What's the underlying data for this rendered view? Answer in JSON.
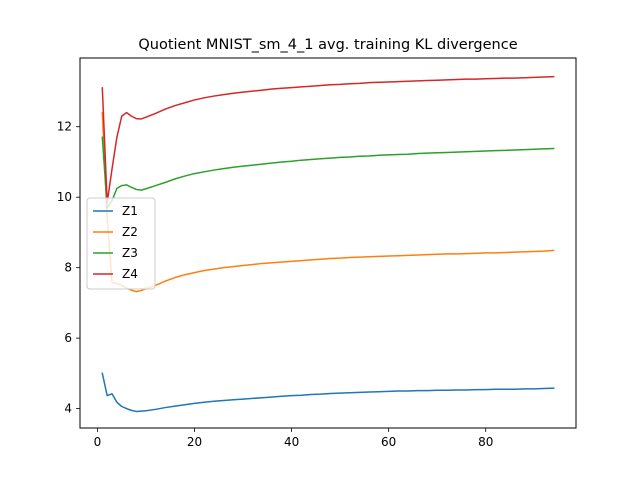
{
  "chart_data": {
    "type": "line",
    "title": "Quotient MNIST_sm_4_1 avg. training KL divergence",
    "xlabel": "",
    "ylabel": "",
    "xlim": [
      -3.6,
      98.6
    ],
    "ylim": [
      3.45,
      13.95
    ],
    "xticks": [
      0,
      20,
      40,
      60,
      80
    ],
    "yticks": [
      4,
      6,
      8,
      10,
      12
    ],
    "grid": false,
    "legend_position": "center-left",
    "series": [
      {
        "name": "Z1",
        "color": "#1f77b4",
        "x": [
          1,
          2,
          3,
          4,
          5,
          6,
          7,
          8,
          9,
          10,
          12,
          14,
          16,
          18,
          20,
          22,
          24,
          26,
          28,
          30,
          32,
          34,
          36,
          38,
          40,
          42,
          44,
          46,
          48,
          50,
          52,
          54,
          56,
          58,
          60,
          62,
          64,
          66,
          68,
          70,
          72,
          74,
          76,
          78,
          80,
          82,
          84,
          86,
          88,
          90,
          92,
          94
        ],
        "y": [
          5.0,
          4.37,
          4.42,
          4.18,
          4.06,
          4.0,
          3.95,
          3.92,
          3.93,
          3.94,
          3.98,
          4.03,
          4.07,
          4.11,
          4.15,
          4.18,
          4.21,
          4.23,
          4.25,
          4.27,
          4.29,
          4.31,
          4.33,
          4.35,
          4.37,
          4.38,
          4.4,
          4.41,
          4.43,
          4.44,
          4.45,
          4.46,
          4.47,
          4.48,
          4.49,
          4.5,
          4.5,
          4.51,
          4.51,
          4.52,
          4.52,
          4.53,
          4.53,
          4.54,
          4.54,
          4.55,
          4.55,
          4.55,
          4.56,
          4.56,
          4.57,
          4.58
        ]
      },
      {
        "name": "Z2",
        "color": "#ff7f0e",
        "x": [
          1,
          2,
          3,
          4,
          5,
          6,
          7,
          8,
          9,
          10,
          12,
          14,
          16,
          18,
          20,
          22,
          24,
          26,
          28,
          30,
          32,
          34,
          36,
          38,
          40,
          42,
          44,
          46,
          48,
          50,
          52,
          54,
          56,
          58,
          60,
          62,
          64,
          66,
          68,
          70,
          72,
          74,
          76,
          78,
          80,
          82,
          84,
          86,
          88,
          90,
          92,
          94
        ],
        "y": [
          12.4,
          9.4,
          7.58,
          7.55,
          7.5,
          7.42,
          7.36,
          7.32,
          7.35,
          7.4,
          7.5,
          7.62,
          7.72,
          7.8,
          7.86,
          7.92,
          7.96,
          8.0,
          8.03,
          8.06,
          8.09,
          8.12,
          8.14,
          8.16,
          8.18,
          8.2,
          8.22,
          8.24,
          8.26,
          8.27,
          8.29,
          8.3,
          8.31,
          8.32,
          8.33,
          8.34,
          8.35,
          8.36,
          8.37,
          8.38,
          8.39,
          8.39,
          8.4,
          8.41,
          8.42,
          8.42,
          8.43,
          8.44,
          8.45,
          8.46,
          8.47,
          8.49
        ]
      },
      {
        "name": "Z3",
        "color": "#2ca02c",
        "x": [
          1,
          2,
          3,
          4,
          5,
          6,
          7,
          8,
          9,
          10,
          12,
          14,
          16,
          18,
          20,
          22,
          24,
          26,
          28,
          30,
          32,
          34,
          36,
          38,
          40,
          42,
          44,
          46,
          48,
          50,
          52,
          54,
          56,
          58,
          60,
          62,
          64,
          66,
          68,
          70,
          72,
          74,
          76,
          78,
          80,
          82,
          84,
          86,
          88,
          90,
          92,
          94
        ],
        "y": [
          11.7,
          9.7,
          9.9,
          10.25,
          10.33,
          10.35,
          10.28,
          10.22,
          10.2,
          10.24,
          10.33,
          10.42,
          10.52,
          10.6,
          10.67,
          10.72,
          10.77,
          10.81,
          10.85,
          10.88,
          10.91,
          10.94,
          10.97,
          11.0,
          11.02,
          11.05,
          11.07,
          11.09,
          11.11,
          11.13,
          11.14,
          11.16,
          11.17,
          11.19,
          11.2,
          11.21,
          11.22,
          11.24,
          11.25,
          11.26,
          11.27,
          11.28,
          11.29,
          11.3,
          11.31,
          11.32,
          11.33,
          11.34,
          11.35,
          11.36,
          11.37,
          11.38
        ]
      },
      {
        "name": "Z4",
        "color": "#d62728",
        "x": [
          1,
          2,
          3,
          4,
          5,
          6,
          7,
          8,
          9,
          10,
          12,
          14,
          16,
          18,
          20,
          22,
          24,
          26,
          28,
          30,
          32,
          34,
          36,
          38,
          40,
          42,
          44,
          46,
          48,
          50,
          52,
          54,
          56,
          58,
          60,
          62,
          64,
          66,
          68,
          70,
          72,
          74,
          76,
          78,
          80,
          82,
          84,
          86,
          88,
          90,
          92,
          94
        ],
        "y": [
          13.1,
          9.85,
          10.8,
          11.7,
          12.3,
          12.4,
          12.3,
          12.23,
          12.22,
          12.27,
          12.38,
          12.5,
          12.6,
          12.68,
          12.76,
          12.82,
          12.87,
          12.91,
          12.95,
          12.98,
          13.01,
          13.04,
          13.07,
          13.09,
          13.11,
          13.13,
          13.15,
          13.17,
          13.19,
          13.2,
          13.22,
          13.23,
          13.25,
          13.26,
          13.27,
          13.28,
          13.29,
          13.3,
          13.31,
          13.32,
          13.33,
          13.34,
          13.35,
          13.35,
          13.36,
          13.37,
          13.38,
          13.38,
          13.39,
          13.4,
          13.41,
          13.42
        ]
      }
    ]
  }
}
